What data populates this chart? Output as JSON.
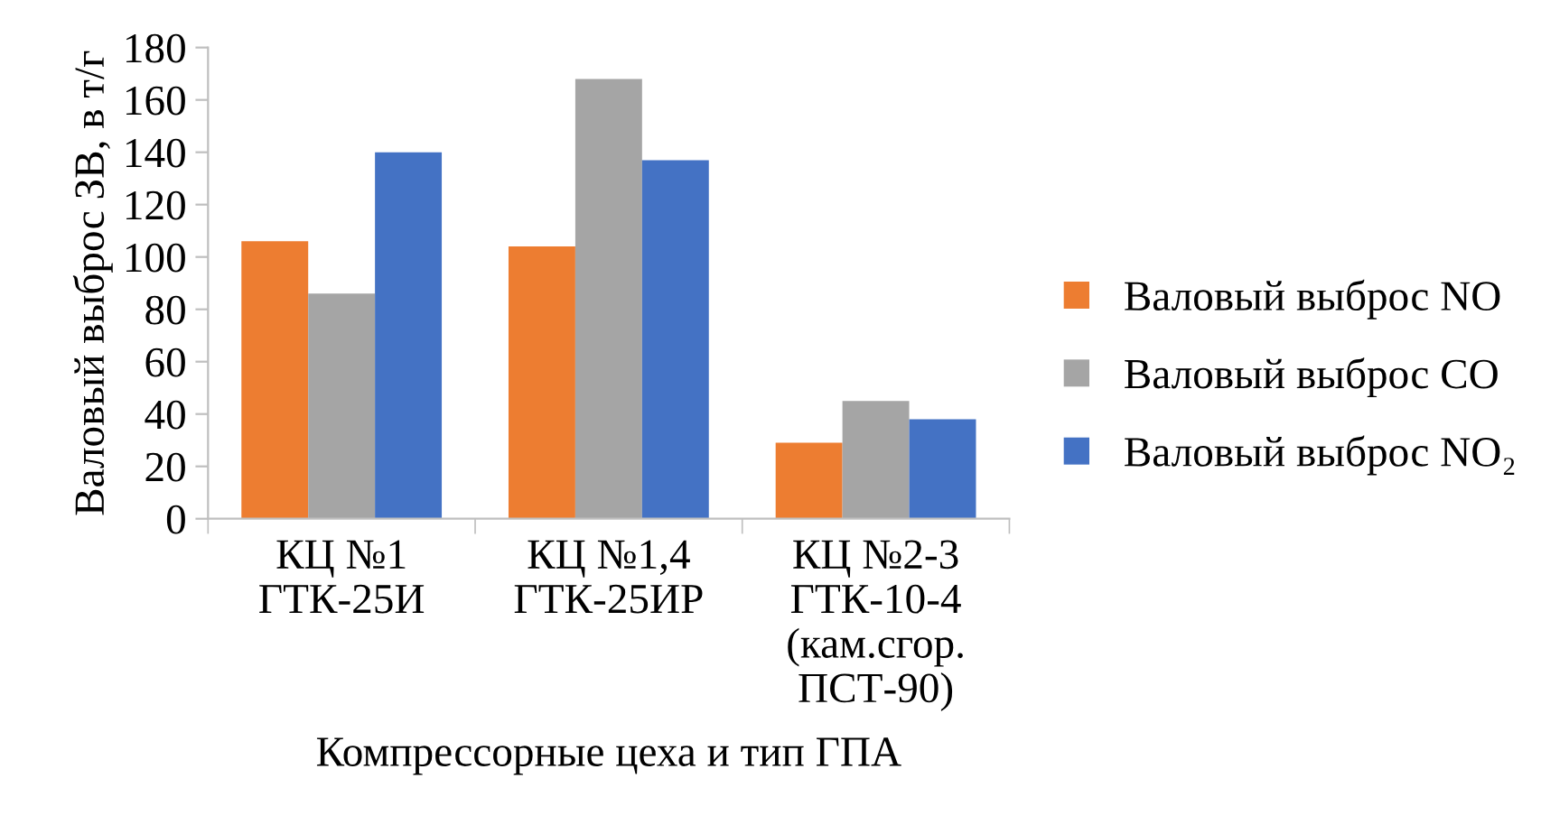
{
  "chart_data": {
    "type": "bar",
    "xlabel": "Компрессорные цеха и тип ГПА",
    "ylabel": "Валовый выброс ЗВ, в т/г",
    "categories": [
      "КЦ №1\nГТК-25И",
      "КЦ №1,4\nГТК-25ИР",
      "КЦ №2-3\nГТК-10-4\n(кам.сгор.\nПСТ-90)"
    ],
    "series": [
      {
        "name": "Валовый выброс NO",
        "color": "#ed7d31",
        "values": [
          106,
          104,
          29
        ]
      },
      {
        "name": "Валовый выброс CO",
        "color": "#a5a5a5",
        "values": [
          86,
          168,
          45
        ]
      },
      {
        "name": "Валовый выброс NO₂",
        "color": "#4472c4",
        "values": [
          140,
          137,
          38
        ]
      }
    ],
    "ylim": [
      0,
      180
    ],
    "yticks": [
      0,
      20,
      40,
      60,
      80,
      100,
      120,
      140,
      160,
      180
    ],
    "grid": false,
    "legend": "right"
  }
}
